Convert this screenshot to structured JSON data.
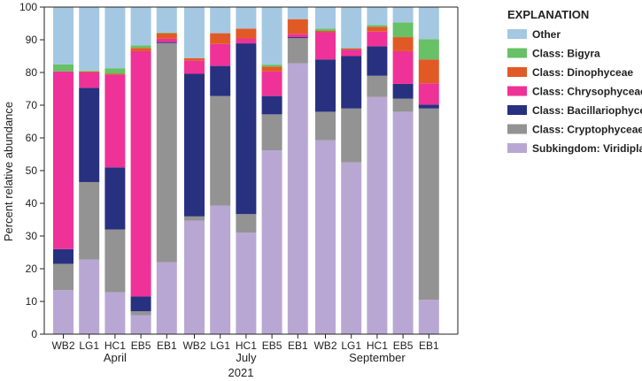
{
  "chart_data": {
    "type": "bar",
    "stacked": true,
    "ylabel": "Percent relative abundance",
    "xlabel": "2021",
    "ylim": [
      0,
      100
    ],
    "yticks": [
      0,
      10,
      20,
      30,
      40,
      50,
      60,
      70,
      80,
      90,
      100
    ],
    "groups": [
      {
        "label": "April",
        "categories": [
          "WB2",
          "LG1",
          "HC1",
          "EB5",
          "EB1"
        ]
      },
      {
        "label": "July",
        "categories": [
          "WB2",
          "LG1",
          "HC1",
          "EB5",
          "EB1"
        ]
      },
      {
        "label": "September",
        "categories": [
          "WB2",
          "LG1",
          "HC1",
          "EB5",
          "EB1"
        ]
      }
    ],
    "legend_title": "EXPLANATION",
    "legend_position": "top-right",
    "series": [
      {
        "name": "Subkingdom: Viridiplantae",
        "color": "#b9a7d3",
        "values": [
          13.5,
          22.8,
          12.8,
          5.8,
          22.0,
          34.7,
          39.3,
          31.0,
          56.2,
          82.8,
          59.3,
          52.5,
          72.5,
          68.0,
          10.5
        ]
      },
      {
        "name": "Class: Cryptophyceae",
        "color": "#939393",
        "values": [
          8.0,
          23.7,
          19.2,
          1.2,
          67.0,
          1.3,
          33.5,
          5.7,
          11.0,
          7.7,
          8.7,
          16.5,
          6.5,
          4.0,
          58.5
        ]
      },
      {
        "name": "Class: Bacillariophyceae",
        "color": "#283180",
        "values": [
          4.5,
          28.8,
          19.0,
          4.5,
          0.3,
          43.6,
          9.2,
          52.2,
          5.6,
          0.3,
          16.0,
          16.0,
          9.0,
          4.5,
          1.2
        ]
      },
      {
        "name": "Class: Chrysophyceae",
        "color": "#ee3297",
        "values": [
          54.3,
          4.7,
          28.3,
          75.0,
          1.0,
          4.0,
          6.7,
          1.5,
          7.5,
          1.0,
          8.3,
          2.0,
          4.5,
          10.0,
          6.5
        ]
      },
      {
        "name": "Class: Dinophyceae",
        "color": "#e15a26",
        "values": [
          0.0,
          0.3,
          0.3,
          1.0,
          1.7,
          0.8,
          3.3,
          3.0,
          1.5,
          4.5,
          0.4,
          0.3,
          1.5,
          4.3,
          7.3
        ]
      },
      {
        "name": "Class: Bigyra",
        "color": "#68c067",
        "values": [
          2.2,
          0.2,
          1.7,
          0.8,
          0.2,
          0.0,
          0.0,
          0.0,
          0.6,
          0.0,
          0.7,
          0.2,
          0.5,
          4.5,
          6.2
        ]
      },
      {
        "name": "Other",
        "color": "#a4c8e2",
        "values": [
          17.5,
          19.5,
          18.7,
          11.7,
          7.8,
          15.6,
          8.0,
          6.6,
          17.6,
          3.7,
          6.6,
          12.5,
          5.5,
          4.7,
          9.8
        ]
      }
    ],
    "legend_order": [
      "Other",
      "Class: Bigyra",
      "Class: Dinophyceae",
      "Class: Chrysophyceae",
      "Class: Bacillariophyceae",
      "Class: Cryptophyceae",
      "Subkingdom: Viridiplantae"
    ]
  }
}
